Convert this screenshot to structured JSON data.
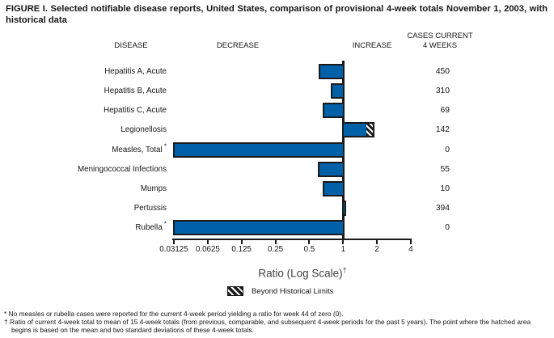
{
  "title": "FIGURE I. Selected notifiable disease reports, United States, comparison of provisional 4-week totals November 1, 2003, with historical data",
  "columns": {
    "disease": "DISEASE",
    "decrease": "DECREASE",
    "increase": "INCREASE",
    "cases_line1": "CASES CURRENT",
    "cases_line2": "4 WEEKS"
  },
  "chart_data": {
    "type": "bar",
    "orientation": "horizontal",
    "x_scale": "log2",
    "xlim": [
      0.03125,
      4
    ],
    "baseline": 1,
    "x_ticks": [
      0.03125,
      0.0625,
      0.125,
      0.25,
      0.5,
      1,
      2,
      4
    ],
    "x_tick_labels": [
      "0.03125",
      "0.0625",
      "0.125",
      "0.25",
      "0.5",
      "1",
      "2",
      "4"
    ],
    "xlabel": "Ratio (Log Scale)",
    "xlabel_sup": "†",
    "rows": [
      {
        "disease": "Hepatitis A, Acute",
        "ratio": 0.61,
        "cases": "450"
      },
      {
        "disease": "Hepatitis B, Acute",
        "ratio": 0.78,
        "cases": "310"
      },
      {
        "disease": "Hepatitis C, Acute",
        "ratio": 0.66,
        "cases": "69"
      },
      {
        "disease": "Legionellosis",
        "ratio": 1.9,
        "beyond_limit_start": 1.65,
        "cases": "142"
      },
      {
        "disease": "Measles, Total",
        "label_sup": "*",
        "ratio": 0,
        "cases": "0"
      },
      {
        "disease": "Meningococcal Infections",
        "ratio": 0.6,
        "cases": "55"
      },
      {
        "disease": "Mumps",
        "ratio": 0.66,
        "cases": "10"
      },
      {
        "disease": "Pertussis",
        "ratio": 1.07,
        "cases": "394"
      },
      {
        "disease": "Rubella",
        "label_sup": "*",
        "ratio": 0,
        "cases": "0"
      }
    ],
    "legend": {
      "label": "Beyond Historical Limits",
      "swatch": "hatched-black-white-diagonal"
    }
  },
  "footnotes": [
    {
      "marker": "*",
      "text": "No measles or rubella cases were reported for the current 4-week period yielding a ratio for week 44 of zero (0)."
    },
    {
      "marker": "†",
      "text": "Ratio of current 4-week total to mean of 15 4-week totals (from previous, comparable, and subsequent 4-week periods for the past 5 years). The point where the hatched area begins is based on the mean and two standard deviations of these 4-week totals."
    }
  ],
  "colors": {
    "bar_fill": "#0060a8",
    "bar_border": "#1b1b1b",
    "axis": "#1b1b1b",
    "text": "#161616"
  }
}
